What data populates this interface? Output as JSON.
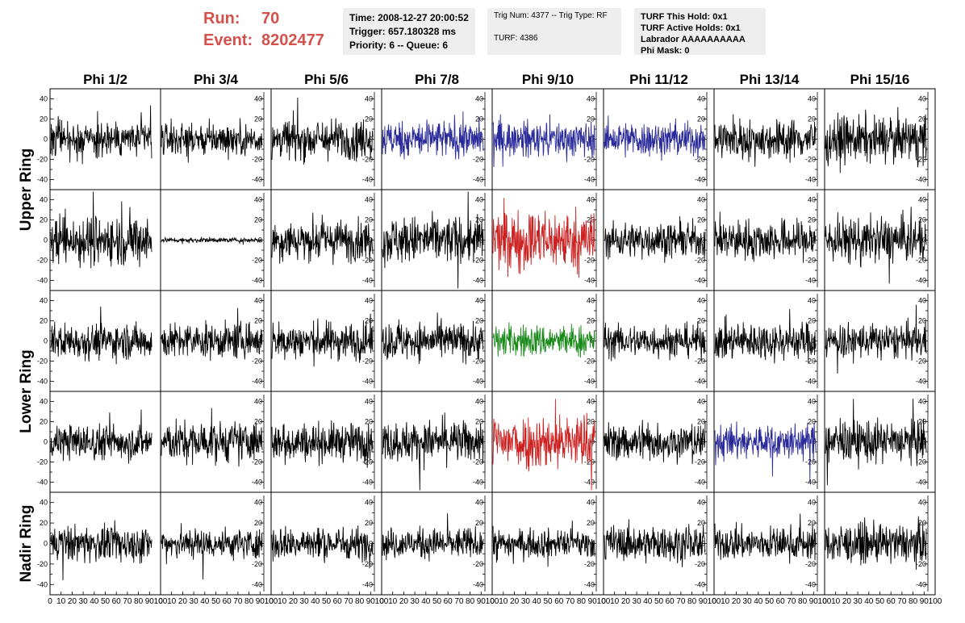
{
  "header": {
    "run_label": "Run:",
    "run_value": "70",
    "event_label": "Event:",
    "event_value": "8202477"
  },
  "info_time": {
    "time": "Time: 2008-12-27 20:00:52",
    "trigger": "Trigger: 657.180328 ms",
    "priority": "Priority: 6 -- Queue: 6"
  },
  "info_trig": {
    "trig": "Trig Num: 4377 -- Trig Type: RF",
    "turf": "TURF: 4386"
  },
  "info_turf": {
    "this_hold": "TURF This Hold: 0x1",
    "active_holds": "TURF Active Holds: 0x1",
    "labrador": "Labrador AAAAAAAAAA",
    "phi_mask": "Phi Mask: 0"
  },
  "chart_data": {
    "type": "line",
    "columns": [
      "Phi 1/2",
      "Phi 3/4",
      "Phi 5/6",
      "Phi 7/8",
      "Phi 9/10",
      "Phi 11/12",
      "Phi 13/14",
      "Phi 15/16"
    ],
    "rows": [
      "Upper Ring",
      "",
      "Lower Ring",
      "",
      "Nadir Ring"
    ],
    "ylim": [
      -50,
      50
    ],
    "yticks": [
      "40",
      "20",
      "0",
      "-20",
      "-40"
    ],
    "xlim": [
      0,
      100
    ],
    "xtick_labels": [
      "0",
      "10",
      "20",
      "30",
      "40",
      "50",
      "60",
      "70",
      "80",
      "90",
      "100"
    ],
    "waveform_samples": 260,
    "waveform_x_range": [
      0,
      100
    ],
    "colors": {
      "default": "#000000",
      "blue": "#2a2a9a",
      "red": "#cc2222",
      "green": "#1a8a1a"
    },
    "panel_colors": [
      [
        "default",
        "default",
        "default",
        "blue",
        "blue",
        "blue",
        "default",
        "default"
      ],
      [
        "default",
        "default",
        "default",
        "default",
        "red",
        "default",
        "default",
        "default"
      ],
      [
        "default",
        "default",
        "default",
        "default",
        "green",
        "default",
        "default",
        "default"
      ],
      [
        "default",
        "default",
        "default",
        "default",
        "red",
        "default",
        "blue",
        "default"
      ],
      [
        "default",
        "default",
        "default",
        "default",
        "default",
        "default",
        "default",
        "default"
      ]
    ],
    "panel_amplitudes": [
      [
        15,
        13,
        16,
        15,
        14,
        14,
        16,
        18
      ],
      [
        20,
        2,
        16,
        19,
        24,
        14,
        16,
        18
      ],
      [
        14,
        14,
        15,
        15,
        13,
        13,
        15,
        14
      ],
      [
        14,
        16,
        15,
        16,
        22,
        15,
        14,
        17
      ],
      [
        14,
        12,
        13,
        12,
        11,
        14,
        13,
        15
      ]
    ]
  }
}
